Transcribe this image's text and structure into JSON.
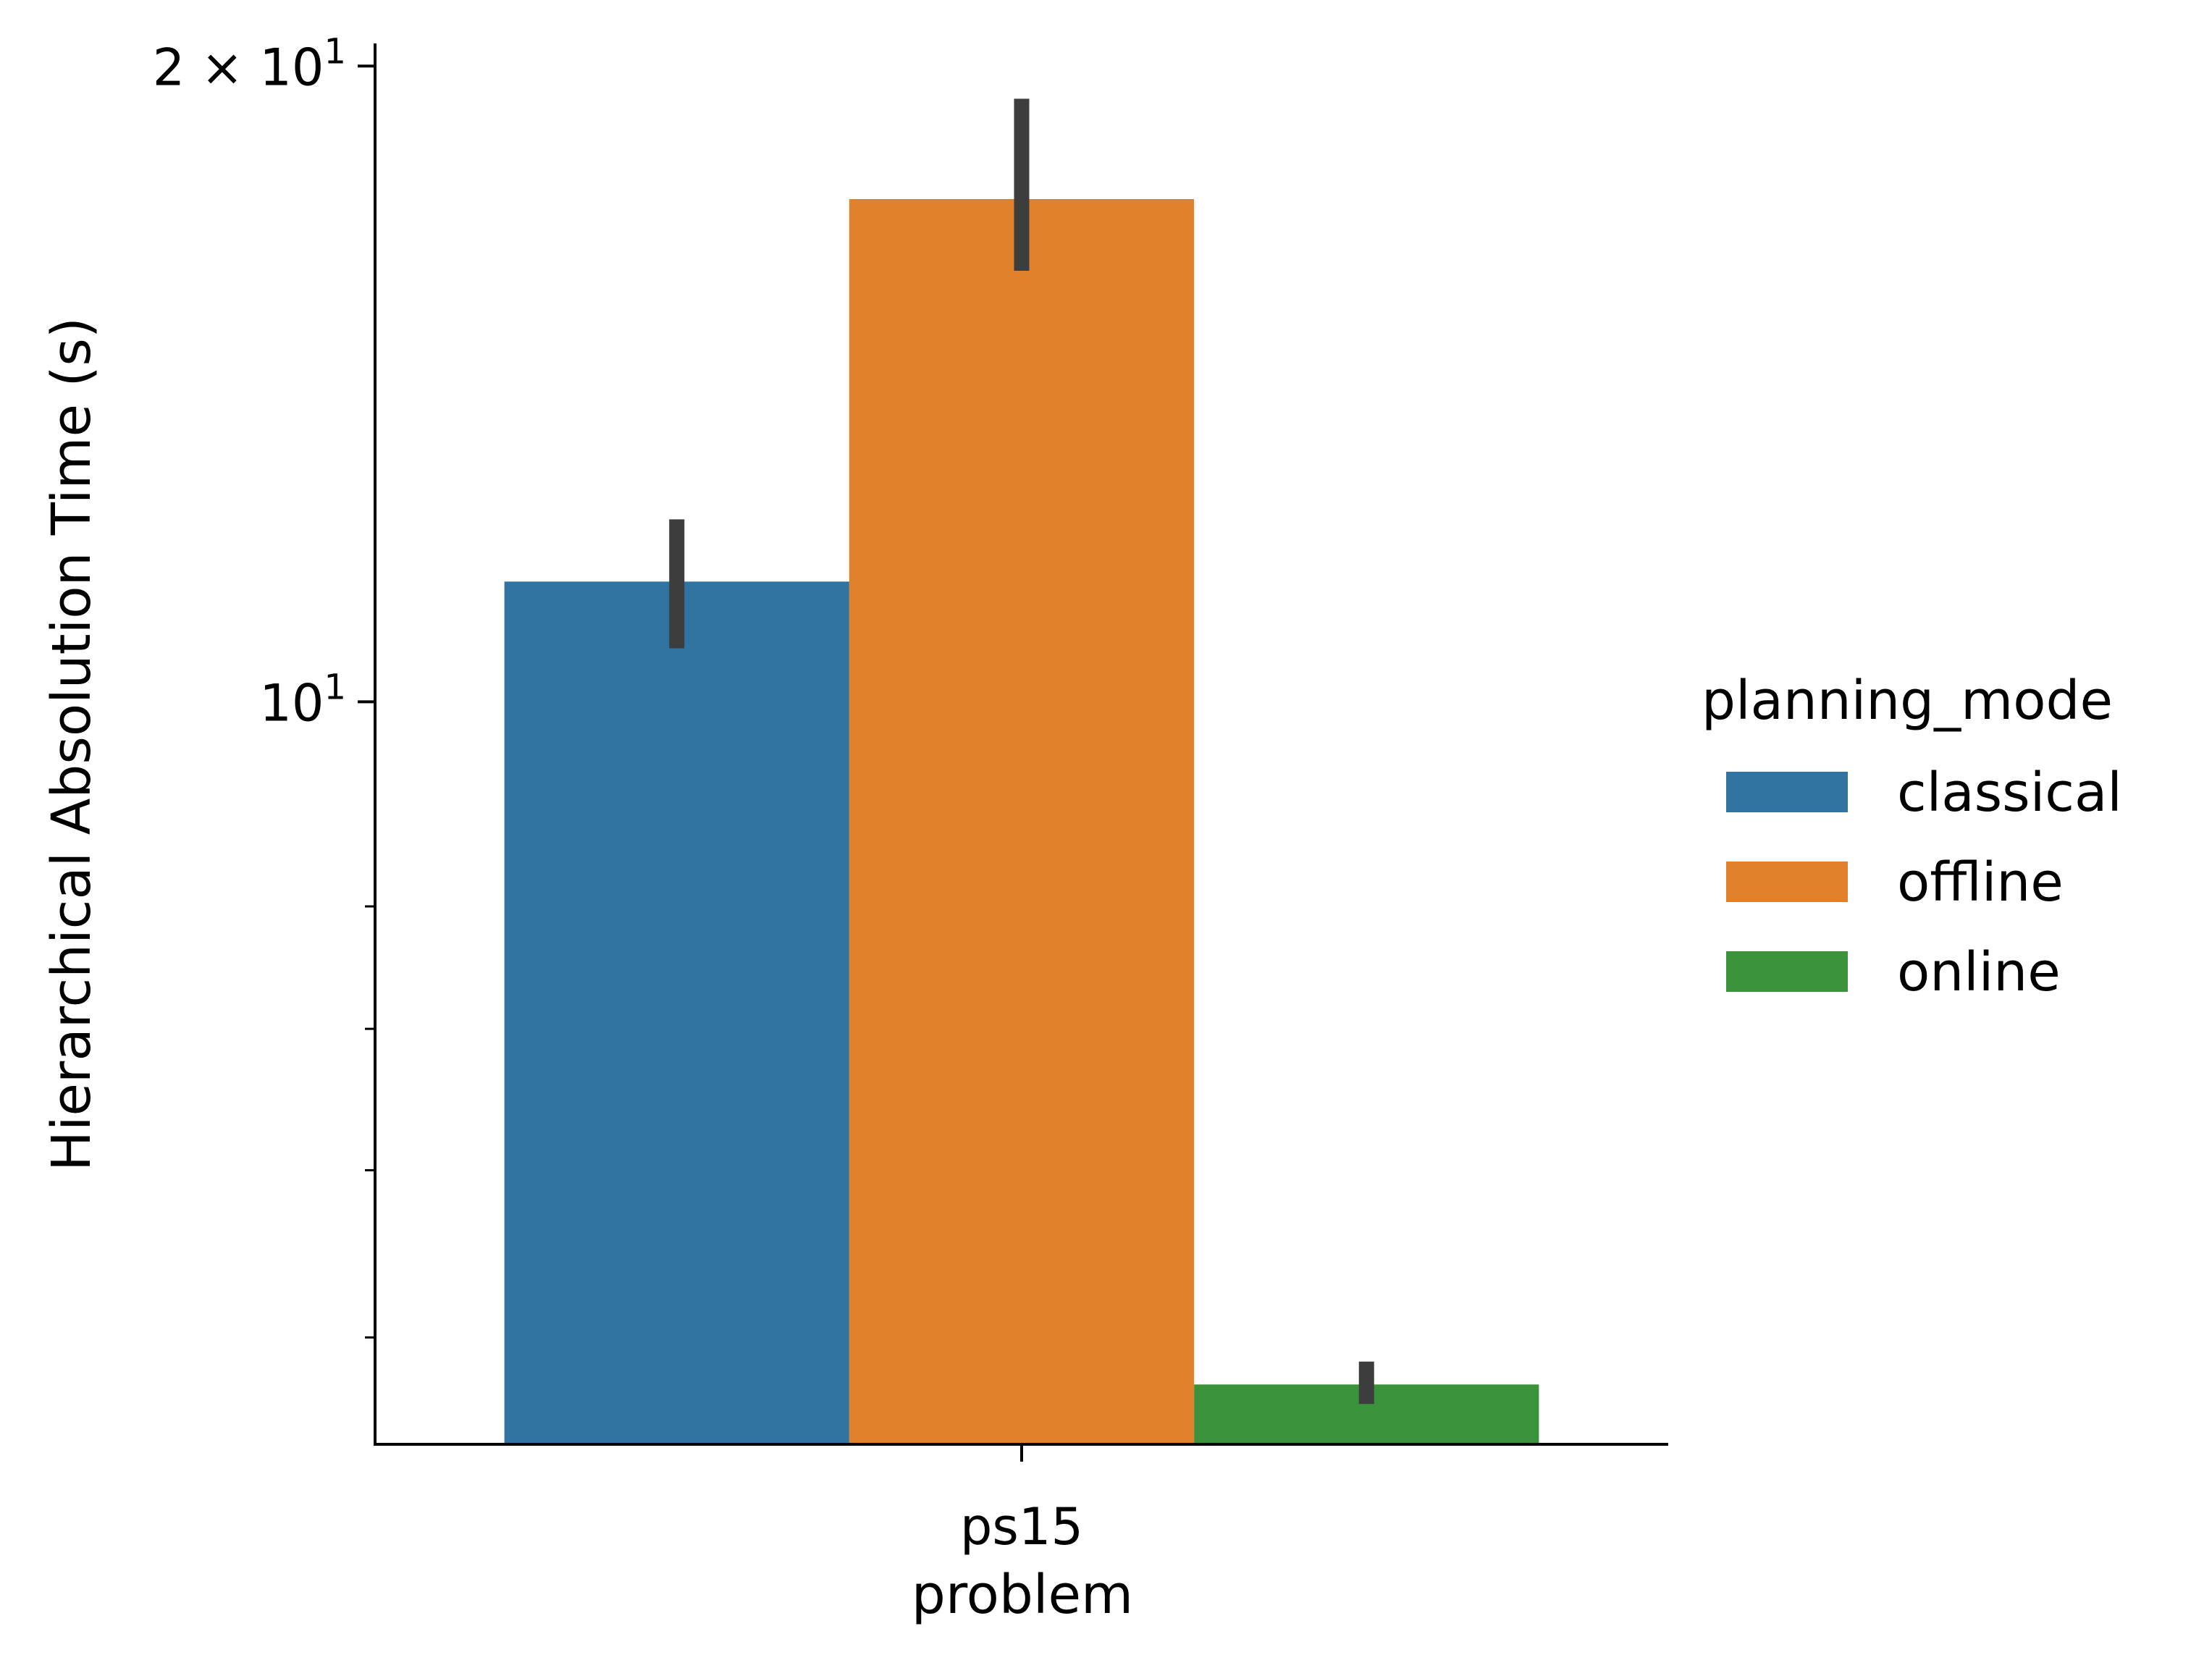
{
  "chart_data": {
    "type": "bar",
    "title": "",
    "xlabel": "problem",
    "ylabel": "Hierarchical Absolution Time (s)",
    "yscale": "log",
    "ylim": [
      4.45,
      20.5
    ],
    "categories": [
      "ps15"
    ],
    "yticks": [
      {
        "value": 10,
        "label_base": "10",
        "label_exp": "1"
      },
      {
        "value": 20,
        "label_base": "2 × 10",
        "label_exp": "1"
      }
    ],
    "minor_yticks": [
      5,
      6,
      7,
      8
    ],
    "legend": {
      "title": "planning_mode",
      "position": "right"
    },
    "series": [
      {
        "name": "classical",
        "color": "#3274a1",
        "values": [
          11.4
        ],
        "ci_low": [
          10.6
        ],
        "ci_high": [
          12.2
        ]
      },
      {
        "name": "offline",
        "color": "#e1812c",
        "values": [
          17.3
        ],
        "ci_low": [
          16.0
        ],
        "ci_high": [
          19.3
        ]
      },
      {
        "name": "online",
        "color": "#3a923a",
        "values": [
          4.75
        ],
        "ci_low": [
          4.65
        ],
        "ci_high": [
          4.87
        ]
      }
    ],
    "errorbar_color": "#3d3d3d",
    "grid": false
  }
}
